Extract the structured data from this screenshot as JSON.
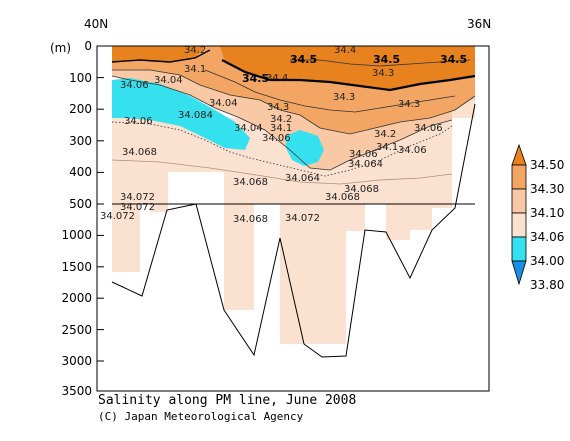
{
  "chart_data": {
    "type": "heatmap",
    "title": "Salinity along PM line, June 2008",
    "credit": "(C) Japan Meteorological Agency",
    "ylabel": "(m)",
    "x_ticks": [
      "40N",
      "36N"
    ],
    "y_ticks_upper": [
      "0",
      "100",
      "200",
      "300",
      "400",
      "500"
    ],
    "y_ticks_lower": [
      "1000",
      "1500",
      "2000",
      "2500",
      "3000",
      "3500"
    ],
    "upper_ylim": [
      0,
      500
    ],
    "lower_ylim": [
      500,
      3500
    ],
    "colorbar": {
      "labels": [
        "34.50",
        "34.30",
        "34.10",
        "34.06",
        "34.00",
        "33.80"
      ],
      "colors": [
        "#e8821e",
        "#f3a664",
        "#f8c9a4",
        "#fbe1cf",
        "#35e1ef",
        "#1a8fe6"
      ]
    },
    "contour_labels": [
      {
        "text": "34.2",
        "bold": false
      },
      {
        "text": "34.4",
        "bold": false
      },
      {
        "text": "34.5",
        "bold": true
      },
      {
        "text": "34.5",
        "bold": true
      },
      {
        "text": "34.5",
        "bold": true
      },
      {
        "text": "34.1",
        "bold": false
      },
      {
        "text": "34.3",
        "bold": false
      },
      {
        "text": "34.5",
        "bold": true
      },
      {
        "text": "34.4",
        "bold": false
      },
      {
        "text": "34.06",
        "bold": false
      },
      {
        "text": "34.04",
        "bold": false
      },
      {
        "text": "34.04",
        "bold": false
      },
      {
        "text": "34.3",
        "bold": false
      },
      {
        "text": "34.3",
        "bold": false
      },
      {
        "text": "34.3",
        "bold": false
      },
      {
        "text": "34.06",
        "bold": false
      },
      {
        "text": "34.084",
        "bold": false
      },
      {
        "text": "34.2",
        "bold": false
      },
      {
        "text": "34.04",
        "bold": false
      },
      {
        "text": "34.1",
        "bold": false
      },
      {
        "text": "34.06",
        "bold": false
      },
      {
        "text": "34.2",
        "bold": false
      },
      {
        "text": "34.06",
        "bold": false
      },
      {
        "text": "34.068",
        "bold": false
      },
      {
        "text": "34.06",
        "bold": false
      },
      {
        "text": "34.1",
        "bold": false
      },
      {
        "text": "34.06",
        "bold": false
      },
      {
        "text": "34.064",
        "bold": false
      },
      {
        "text": "34.068",
        "bold": false
      },
      {
        "text": "34.064",
        "bold": false
      },
      {
        "text": "34.068",
        "bold": false
      },
      {
        "text": "34.068",
        "bold": false
      },
      {
        "text": "34.072",
        "bold": false
      },
      {
        "text": "34.072",
        "bold": false
      },
      {
        "text": "34.072",
        "bold": false
      },
      {
        "text": "34.068",
        "bold": false
      },
      {
        "text": "34.072",
        "bold": false
      }
    ]
  }
}
